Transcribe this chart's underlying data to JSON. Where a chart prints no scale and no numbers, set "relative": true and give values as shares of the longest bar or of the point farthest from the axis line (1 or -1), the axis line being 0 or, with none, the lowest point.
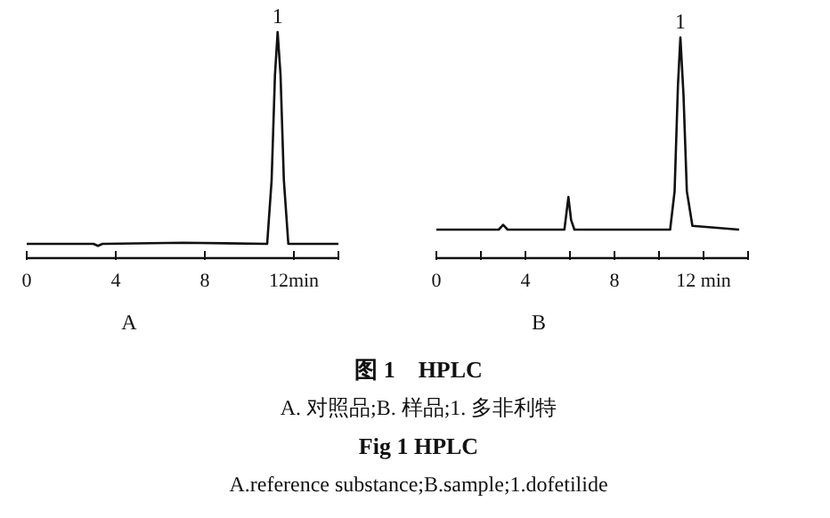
{
  "chart_data": [
    {
      "type": "line",
      "relative": true,
      "xlabel": "A",
      "xlim": [
        0,
        14
      ],
      "xticks": [
        0,
        4,
        8,
        {
          "value": 12,
          "label": "12min"
        },
        {
          "value": 14,
          "label": null
        }
      ],
      "series": [
        {
          "color": "#111111",
          "x": [
            0,
            3,
            3.2,
            3.4,
            7,
            10.8,
            11.0,
            11.15,
            11.27,
            11.4,
            11.55,
            11.75,
            14
          ],
          "values": [
            0.063,
            0.063,
            0.054,
            0.063,
            0.068,
            0.063,
            0.344,
            0.811,
            1,
            0.811,
            0.344,
            0.063,
            0.063
          ]
        }
      ],
      "annotations": [
        {
          "text": "1",
          "x": 11.27,
          "y": 1
        },
        "图 1　HPLC",
        "A. 对照品;B. 样品;1. 多非利特",
        "Fig 1 HPLC",
        "A.reference substance;B.sample;1.dofetilide"
      ]
    },
    {
      "type": "line",
      "relative": true,
      "xlabel": "B",
      "xlim": [
        0,
        14
      ],
      "xticks": [
        0,
        {
          "value": 2,
          "label": null
        },
        4,
        {
          "value": 6,
          "label": null
        },
        8,
        {
          "value": 10,
          "label": null
        },
        {
          "value": 12,
          "label": "12 min"
        },
        {
          "value": 14,
          "label": null
        }
      ],
      "series": [
        {
          "color": "#111111",
          "x": [
            0,
            2.8,
            3.0,
            3.2,
            5.75,
            5.93,
            6.05,
            6.2,
            10.5,
            10.7,
            10.85,
            10.96,
            11.1,
            11.25,
            11.5,
            13.6
          ],
          "values": [
            0.129,
            0.129,
            0.151,
            0.129,
            0.129,
            0.277,
            0.173,
            0.129,
            0.129,
            0.303,
            0.782,
            1,
            0.739,
            0.303,
            0.146,
            0.129
          ]
        }
      ],
      "annotations": [
        {
          "text": "1",
          "x": 10.96,
          "y": 1
        }
      ]
    }
  ]
}
